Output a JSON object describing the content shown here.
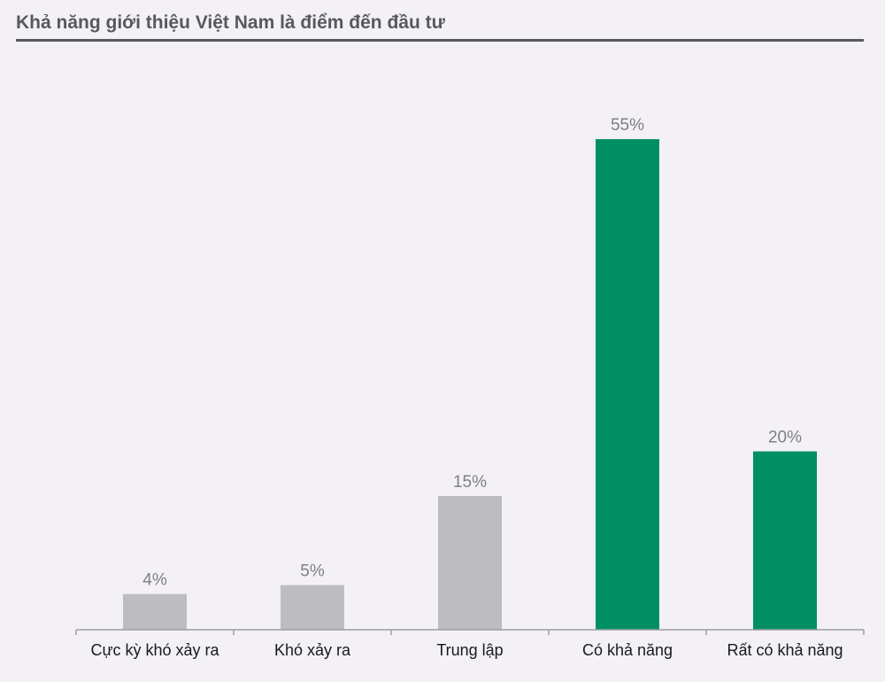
{
  "chart_data": {
    "type": "bar",
    "title": "Khả năng giới thiệu Việt Nam là điểm đến đầu tư",
    "categories": [
      "Cực kỳ khó xảy ra",
      "Khó xảy ra",
      "Trung lập",
      "Có khả năng",
      "Rất có khả năng"
    ],
    "values": [
      4,
      5,
      15,
      55,
      20
    ],
    "value_labels": [
      "4%",
      "5%",
      "15%",
      "55%",
      "20%"
    ],
    "xlabel": "",
    "ylabel": "",
    "ylim": [
      0,
      60
    ],
    "grid": false,
    "legend": "none",
    "colors": {
      "negative_neutral": "#bdbcc1",
      "positive": "#008f63",
      "axis": "#9e9da2",
      "title": "#59585d"
    },
    "bar_color_keys": [
      "negative_neutral",
      "negative_neutral",
      "negative_neutral",
      "positive",
      "positive"
    ]
  }
}
